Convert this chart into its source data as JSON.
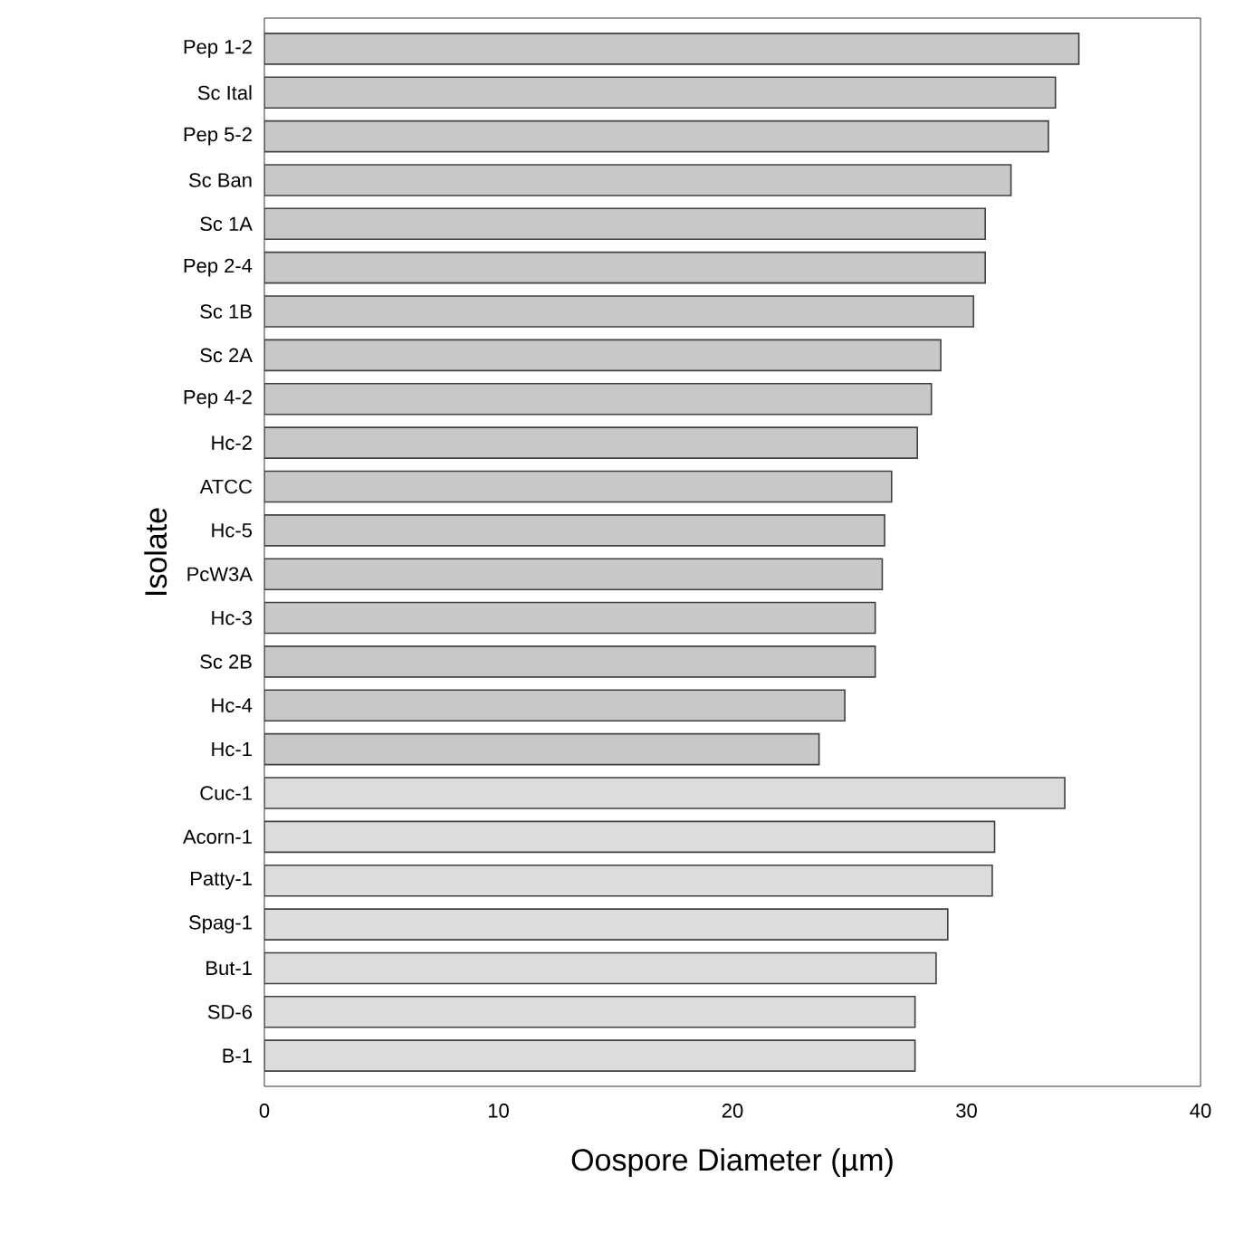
{
  "chart_data": {
    "type": "bar",
    "orientation": "horizontal",
    "xlabel": "Oospore Diameter (µm)",
    "ylabel": "Isolate",
    "categories": [
      "Pep 1-2",
      "Sc Ital",
      "Pep 5-2",
      "Sc Ban",
      "Sc 1A",
      "Pep 2-4",
      "Sc 1B",
      "Sc 2A",
      "Pep 4-2",
      "Hc-2",
      "ATCC",
      "Hc-5",
      "PcW3A",
      "Hc-3",
      "Sc 2B",
      "Hc-4",
      "Hc-1",
      "Cuc-1",
      "Acorn-1",
      "Patty-1",
      "Spag-1",
      "But-1",
      "SD-6",
      "B-1"
    ],
    "series": [
      {
        "color": "#c8c8c8",
        "values": [
          34.8,
          33.8,
          33.5,
          31.9,
          30.8,
          30.8,
          30.3,
          28.9,
          28.5,
          27.9,
          26.8,
          26.5,
          26.4,
          26.1,
          26.1,
          24.8,
          23.7,
          null,
          null,
          null,
          null,
          null,
          null,
          null
        ]
      },
      {
        "color": "#dcdcdc",
        "values": [
          null,
          null,
          null,
          null,
          null,
          null,
          null,
          null,
          null,
          null,
          null,
          null,
          null,
          null,
          null,
          null,
          null,
          34.2,
          31.2,
          31.1,
          29.2,
          28.7,
          27.8,
          27.8
        ]
      }
    ],
    "xlim": [
      0,
      40
    ],
    "xticks": [
      0,
      10,
      20,
      30,
      40
    ],
    "grid": false
  }
}
